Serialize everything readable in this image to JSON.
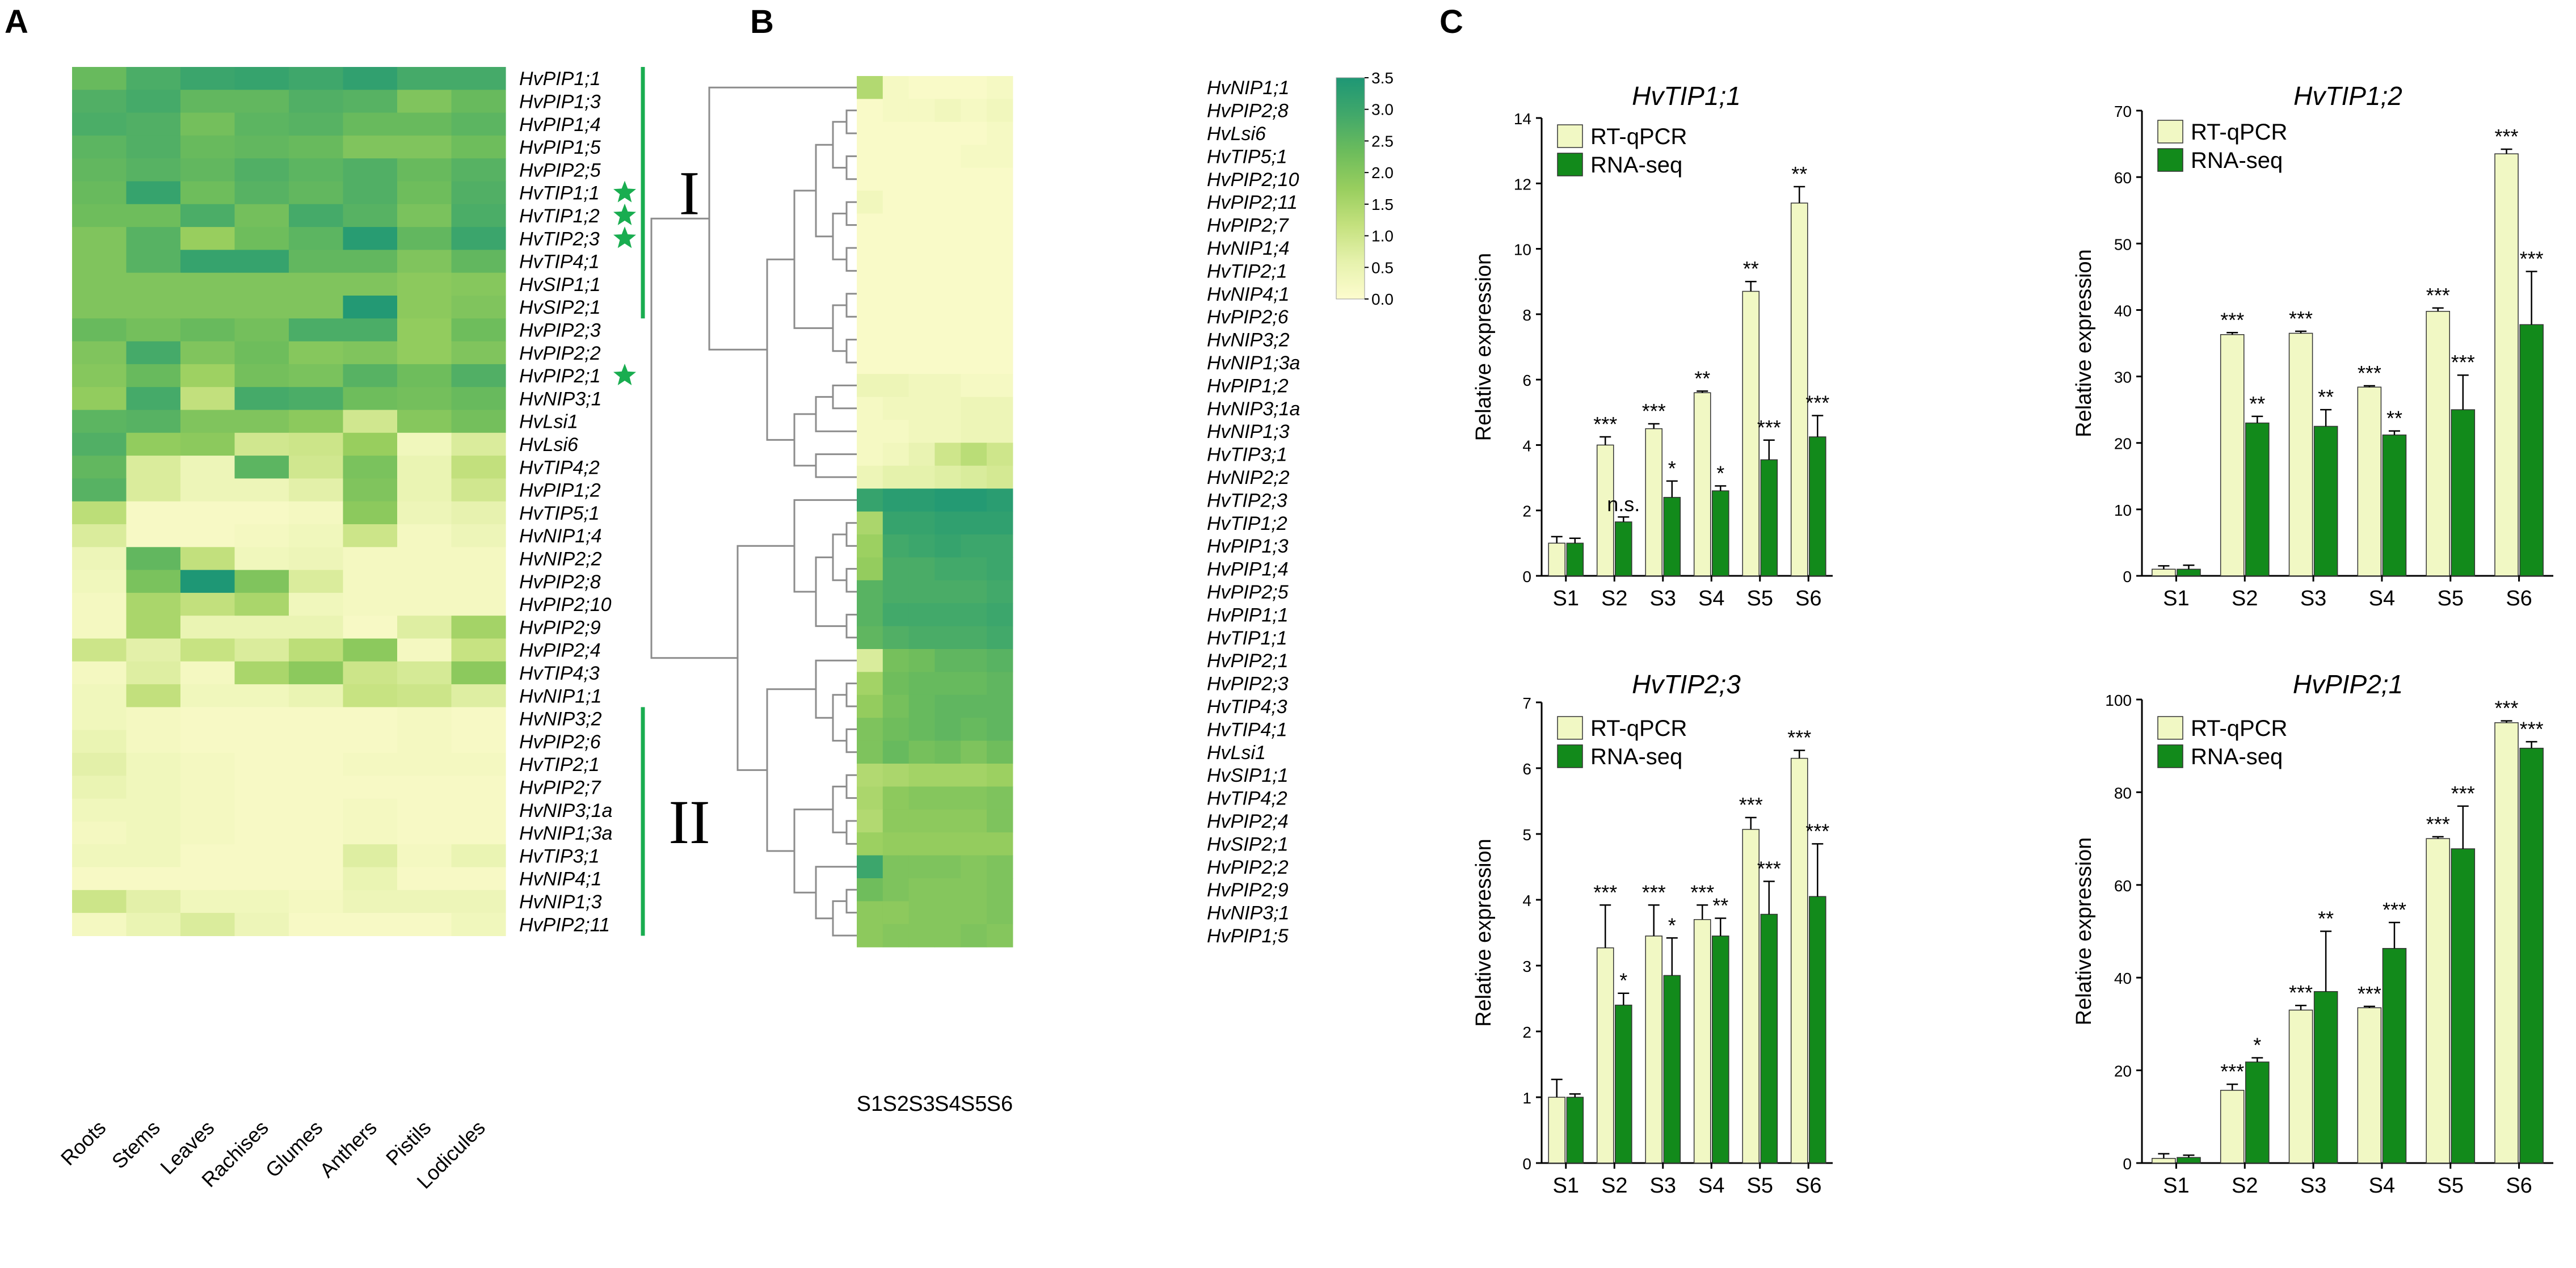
{
  "panel_labels": [
    "A",
    "B",
    "C"
  ],
  "colors": {
    "scale": [
      "#fdfcce",
      "#e6f2ad",
      "#c4e17e",
      "#98ce5e",
      "#6cbc5c",
      "#41a86a",
      "#1e9775"
    ],
    "rtqpcr": "#f1f8c4",
    "rnaseq": "#128a1b",
    "cluster_bar": "#19ad50",
    "star": "#19ad50",
    "dendrogram": "#8c8c8c"
  },
  "chart_data": [
    {
      "type": "heatmap",
      "panel": "A",
      "title": "",
      "xlabel": "",
      "ylabel": "",
      "columns": [
        "Roots",
        "Stems",
        "Leaves",
        "Rachises",
        "Glumes",
        "Anthers",
        "Pistils",
        "Lodicules"
      ],
      "rows": [
        "HvPIP1;1",
        "HvPIP1;3",
        "HvPIP1;4",
        "HvPIP1;5",
        "HvPIP2;5",
        "HvTIP1;1",
        "HvTIP1;2",
        "HvTIP2;3",
        "HvTIP4;1",
        "HvSIP1;1",
        "HvSIP2;1",
        "HvPIP2;3",
        "HvPIP2;2",
        "HvPIP2;1",
        "HvNIP3;1",
        "HvLsi1",
        "HvLsi6",
        "HvTIP4;2",
        "HvPIP1;2",
        "HvTIP5;1",
        "HvNIP1;4",
        "HvNIP2;2",
        "HvPIP2;8",
        "HvPIP2;10",
        "HvPIP2;9",
        "HvPIP2;4",
        "HvTIP4;3",
        "HvNIP1;1",
        "HvNIP3;2",
        "HvPIP2;6",
        "HvTIP2;1",
        "HvPIP2;7",
        "HvNIP3;1a",
        "HvNIP1;3a",
        "HvTIP3;1",
        "HvNIP4;1",
        "HvNIP1;3",
        "HvPIP2;11"
      ],
      "values": [
        [
          3.0,
          3.5,
          3.8,
          3.9,
          3.7,
          4.0,
          3.6,
          3.6
        ],
        [
          3.4,
          3.6,
          3.1,
          3.1,
          3.4,
          3.3,
          2.6,
          3.0
        ],
        [
          3.5,
          3.4,
          2.8,
          3.2,
          3.3,
          3.0,
          3.0,
          3.2
        ],
        [
          3.2,
          3.4,
          3.0,
          3.1,
          3.0,
          2.6,
          2.6,
          2.9
        ],
        [
          3.1,
          3.3,
          3.1,
          3.4,
          3.2,
          3.4,
          3.0,
          3.3
        ],
        [
          3.0,
          3.9,
          2.9,
          3.3,
          3.1,
          3.4,
          2.9,
          3.4
        ],
        [
          2.9,
          2.9,
          3.5,
          2.8,
          3.6,
          3.3,
          2.7,
          3.5
        ],
        [
          2.6,
          3.3,
          2.2,
          2.9,
          3.2,
          4.2,
          3.1,
          3.8
        ],
        [
          2.6,
          3.3,
          3.9,
          3.9,
          3.1,
          3.1,
          2.6,
          3.1
        ],
        [
          2.6,
          2.6,
          2.6,
          2.6,
          2.6,
          2.6,
          2.4,
          2.5
        ],
        [
          2.6,
          2.6,
          2.6,
          2.6,
          2.6,
          4.3,
          2.4,
          2.6
        ],
        [
          3.0,
          2.8,
          3.0,
          2.8,
          3.5,
          3.5,
          2.3,
          2.9
        ],
        [
          2.6,
          3.6,
          2.6,
          2.9,
          2.5,
          2.6,
          2.3,
          2.6
        ],
        [
          2.5,
          3.0,
          2.1,
          2.8,
          2.7,
          3.3,
          2.9,
          3.4
        ],
        [
          2.3,
          3.6,
          1.5,
          3.6,
          3.5,
          2.9,
          2.8,
          3.0
        ],
        [
          3.2,
          3.3,
          2.6,
          2.6,
          2.4,
          1.2,
          2.5,
          2.8
        ],
        [
          3.4,
          2.3,
          2.4,
          1.2,
          1.3,
          2.2,
          0.4,
          1.0
        ],
        [
          3.1,
          1.0,
          0.5,
          3.2,
          1.2,
          2.7,
          0.6,
          1.5
        ],
        [
          3.3,
          1.0,
          0.5,
          0.5,
          0.8,
          2.6,
          0.6,
          1.2
        ],
        [
          1.6,
          0.2,
          0.2,
          0.2,
          0.3,
          2.4,
          0.5,
          0.7
        ],
        [
          1.0,
          0.2,
          0.2,
          0.3,
          0.4,
          1.3,
          0.3,
          0.5
        ],
        [
          0.5,
          3.1,
          1.5,
          0.4,
          0.5,
          0.3,
          0.3,
          0.3
        ],
        [
          0.4,
          2.7,
          4.4,
          2.6,
          1.0,
          0.3,
          0.3,
          0.3
        ],
        [
          0.3,
          1.9,
          1.5,
          1.9,
          0.4,
          0.3,
          0.3,
          0.3
        ],
        [
          0.3,
          1.9,
          0.6,
          0.6,
          0.6,
          0.2,
          0.9,
          2.0
        ],
        [
          1.3,
          0.8,
          1.4,
          1.0,
          1.6,
          2.4,
          0.3,
          1.4
        ],
        [
          0.3,
          0.9,
          0.3,
          1.9,
          2.4,
          1.3,
          1.1,
          2.4
        ],
        [
          0.4,
          1.5,
          0.4,
          0.4,
          0.6,
          1.4,
          1.3,
          0.9
        ],
        [
          0.4,
          0.3,
          0.2,
          0.2,
          0.2,
          0.2,
          0.3,
          0.2
        ],
        [
          0.6,
          0.3,
          0.2,
          0.2,
          0.2,
          0.2,
          0.3,
          0.2
        ],
        [
          0.8,
          0.4,
          0.3,
          0.2,
          0.2,
          0.3,
          0.3,
          0.3
        ],
        [
          0.6,
          0.4,
          0.3,
          0.2,
          0.2,
          0.2,
          0.2,
          0.2
        ],
        [
          0.4,
          0.4,
          0.3,
          0.2,
          0.2,
          0.3,
          0.2,
          0.2
        ],
        [
          0.3,
          0.4,
          0.3,
          0.2,
          0.2,
          0.3,
          0.2,
          0.2
        ],
        [
          0.4,
          0.4,
          0.2,
          0.2,
          0.2,
          0.9,
          0.3,
          0.6
        ],
        [
          0.2,
          0.2,
          0.2,
          0.2,
          0.2,
          0.6,
          0.2,
          0.2
        ],
        [
          1.3,
          0.8,
          0.4,
          0.4,
          0.3,
          0.5,
          0.5,
          0.5
        ],
        [
          0.3,
          0.6,
          1.0,
          0.5,
          0.2,
          0.2,
          0.2,
          0.4
        ]
      ],
      "clusters": [
        {
          "label": "I",
          "from": "HvPIP1;1",
          "to": "HvSIP2;1"
        },
        {
          "label": "II",
          "from": "HvNIP3;2",
          "to": "HvPIP2;11"
        }
      ],
      "starred": [
        "HvTIP1;1",
        "HvTIP1;2",
        "HvTIP2;3",
        "HvPIP2;1"
      ]
    },
    {
      "type": "heatmap",
      "panel": "B",
      "title": "",
      "xlabel": "",
      "ylabel": "",
      "columns": [
        "S1",
        "S2",
        "S3",
        "S4",
        "S5",
        "S6"
      ],
      "rows": [
        "HvNIP1;1",
        "HvPIP2;8",
        "HvLsi6",
        "HvTIP5;1",
        "HvPIP2;10",
        "HvPIP2;11",
        "HvPIP2;7",
        "HvNIP1;4",
        "HvTIP2;1",
        "HvNIP4;1",
        "HvPIP2;6",
        "HvNIP3;2",
        "HvNIP1;3a",
        "HvPIP1;2",
        "HvNIP3;1a",
        "HvNIP1;3",
        "HvTIP3;1",
        "HvNIP2;2",
        "HvTIP2;3",
        "HvTIP1;2",
        "HvPIP1;3",
        "HvPIP1;4",
        "HvPIP2;5",
        "HvPIP1;1",
        "HvTIP1;1",
        "HvPIP2;1",
        "HvPIP2;3",
        "HvTIP4;3",
        "HvTIP4;1",
        "HvLsi1",
        "HvSIP1;1",
        "HvTIP4;2",
        "HvPIP2;4",
        "HvSIP2;1",
        "HvPIP2;2",
        "HvPIP2;9",
        "HvNIP3;1",
        "HvPIP1;5"
      ],
      "values": [
        [
          1.4,
          0.2,
          0.1,
          0.1,
          0.1,
          0.2
        ],
        [
          0.1,
          0.2,
          0.2,
          0.3,
          0.2,
          0.3
        ],
        [
          0.1,
          0.1,
          0.1,
          0.1,
          0.1,
          0.2
        ],
        [
          0.1,
          0.1,
          0.1,
          0.1,
          0.2,
          0.2
        ],
        [
          0.1,
          0.1,
          0.1,
          0.1,
          0.1,
          0.1
        ],
        [
          0.3,
          0.1,
          0.1,
          0.1,
          0.1,
          0.1
        ],
        [
          0.1,
          0.1,
          0.1,
          0.1,
          0.1,
          0.1
        ],
        [
          0.1,
          0.1,
          0.1,
          0.1,
          0.1,
          0.1
        ],
        [
          0.1,
          0.1,
          0.1,
          0.1,
          0.1,
          0.1
        ],
        [
          0.1,
          0.1,
          0.1,
          0.1,
          0.1,
          0.1
        ],
        [
          0.1,
          0.1,
          0.1,
          0.1,
          0.1,
          0.1
        ],
        [
          0.1,
          0.1,
          0.1,
          0.1,
          0.1,
          0.1
        ],
        [
          0.1,
          0.1,
          0.1,
          0.1,
          0.1,
          0.1
        ],
        [
          0.4,
          0.4,
          0.3,
          0.3,
          0.2,
          0.2
        ],
        [
          0.2,
          0.3,
          0.3,
          0.3,
          0.4,
          0.4
        ],
        [
          0.2,
          0.2,
          0.3,
          0.3,
          0.4,
          0.4
        ],
        [
          0.2,
          0.3,
          0.5,
          1.0,
          1.3,
          1.0
        ],
        [
          0.4,
          0.6,
          0.6,
          0.7,
          0.8,
          0.9
        ],
        [
          3.1,
          3.3,
          3.3,
          3.4,
          3.4,
          3.3
        ],
        [
          1.5,
          3.1,
          3.1,
          3.2,
          3.2,
          3.2
        ],
        [
          1.7,
          2.9,
          3.0,
          3.1,
          3.0,
          3.0
        ],
        [
          1.8,
          2.8,
          2.8,
          2.9,
          2.9,
          3.0
        ],
        [
          2.6,
          2.8,
          2.8,
          2.8,
          2.8,
          2.9
        ],
        [
          2.6,
          2.9,
          2.9,
          2.9,
          2.9,
          3.0
        ],
        [
          2.5,
          2.7,
          2.8,
          2.8,
          2.8,
          2.9
        ],
        [
          0.8,
          2.2,
          2.3,
          2.5,
          2.5,
          2.6
        ],
        [
          1.6,
          2.3,
          2.4,
          2.4,
          2.4,
          2.5
        ],
        [
          1.8,
          2.2,
          2.4,
          2.5,
          2.5,
          2.5
        ],
        [
          2.1,
          2.3,
          2.4,
          2.5,
          2.4,
          2.5
        ],
        [
          2.1,
          2.4,
          2.2,
          2.3,
          2.1,
          2.3
        ],
        [
          1.4,
          1.5,
          1.6,
          1.6,
          1.6,
          1.7
        ],
        [
          1.5,
          1.9,
          2.0,
          2.0,
          2.0,
          2.1
        ],
        [
          1.4,
          1.9,
          1.9,
          1.9,
          1.9,
          2.1
        ],
        [
          1.7,
          1.8,
          1.8,
          1.8,
          1.8,
          1.8
        ],
        [
          3.0,
          2.1,
          2.1,
          2.1,
          2.0,
          2.1
        ],
        [
          2.3,
          2.1,
          2.0,
          2.0,
          2.0,
          2.1
        ],
        [
          1.9,
          1.9,
          2.0,
          2.0,
          2.0,
          2.1
        ],
        [
          1.9,
          2.0,
          2.0,
          2.0,
          2.1,
          2.0
        ]
      ],
      "colorbar": {
        "min": 0.0,
        "max": 3.5,
        "ticks": [
          "3.5",
          "3.0",
          "2.5",
          "2.0",
          "1.5",
          "1.0",
          "0.5",
          "0.0"
        ]
      }
    },
    {
      "type": "bar",
      "panel": "C",
      "title": "HvTIP1;1",
      "xlabel": "",
      "ylabel": "Relative expression",
      "categories": [
        "S1",
        "S2",
        "S3",
        "S4",
        "S5",
        "S6"
      ],
      "ylim": [
        0,
        14
      ],
      "yticks": [
        "0",
        "2",
        "4",
        "6",
        "8",
        "10",
        "12",
        "14"
      ],
      "series": [
        {
          "name": "RT-qPCR",
          "values": [
            1.0,
            4.0,
            4.5,
            5.6,
            8.7,
            11.4
          ],
          "errors": [
            0.2,
            0.25,
            0.15,
            0.05,
            0.3,
            0.5
          ],
          "sig": [
            "",
            "***",
            "***",
            "**",
            "**",
            "**"
          ]
        },
        {
          "name": "RNA-seq",
          "values": [
            1.0,
            1.65,
            2.4,
            2.6,
            3.55,
            4.25
          ],
          "errors": [
            0.15,
            0.15,
            0.5,
            0.15,
            0.6,
            0.65
          ],
          "sig": [
            "",
            "n.s.",
            "*",
            "*",
            "***",
            "***"
          ]
        }
      ]
    },
    {
      "type": "bar",
      "panel": "C",
      "title": "HvTIP1;2",
      "xlabel": "",
      "ylabel": "Relative expression",
      "categories": [
        "S1",
        "S2",
        "S3",
        "S4",
        "S5",
        "S6"
      ],
      "ylim": [
        0,
        70
      ],
      "yticks": [
        "0",
        "10",
        "20",
        "30",
        "40",
        "50",
        "60",
        "70"
      ],
      "series": [
        {
          "name": "RT-qPCR",
          "values": [
            1.0,
            36.3,
            36.5,
            28.4,
            39.8,
            63.5
          ],
          "errors": [
            0.5,
            0.3,
            0.3,
            0.2,
            0.5,
            0.7
          ],
          "sig": [
            "",
            "***",
            "***",
            "***",
            "***",
            "***"
          ]
        },
        {
          "name": "RNA-seq",
          "values": [
            1.0,
            23.0,
            22.5,
            21.2,
            25.0,
            37.8
          ],
          "errors": [
            0.6,
            1.0,
            2.5,
            0.6,
            5.2,
            8.0
          ],
          "sig": [
            "",
            "**",
            "**",
            "**",
            "***",
            "***"
          ]
        }
      ]
    },
    {
      "type": "bar",
      "panel": "C",
      "title": "HvTIP2;3",
      "xlabel": "",
      "ylabel": "Relative expression",
      "categories": [
        "S1",
        "S2",
        "S3",
        "S4",
        "S5",
        "S6"
      ],
      "ylim": [
        0,
        7
      ],
      "yticks": [
        "0",
        "1",
        "2",
        "3",
        "4",
        "5",
        "6",
        "7"
      ],
      "series": [
        {
          "name": "RT-qPCR",
          "values": [
            1.0,
            3.27,
            3.45,
            3.7,
            5.07,
            6.15
          ],
          "errors": [
            0.27,
            0.65,
            0.47,
            0.22,
            0.18,
            0.12
          ],
          "sig": [
            "",
            "***",
            "***",
            "***",
            "***",
            "***"
          ]
        },
        {
          "name": "RNA-seq",
          "values": [
            1.0,
            2.4,
            2.85,
            3.45,
            3.78,
            4.05
          ],
          "errors": [
            0.05,
            0.18,
            0.57,
            0.27,
            0.5,
            0.8
          ],
          "sig": [
            "",
            "*",
            "*",
            "**",
            "***",
            "***"
          ]
        }
      ]
    },
    {
      "type": "bar",
      "panel": "C",
      "title": "HvPIP2;1",
      "xlabel": "",
      "ylabel": "Relative expression",
      "categories": [
        "S1",
        "S2",
        "S3",
        "S4",
        "S5",
        "S6"
      ],
      "ylim": [
        0,
        100
      ],
      "yticks": [
        "0",
        "20",
        "40",
        "60",
        "80",
        "100"
      ],
      "series": [
        {
          "name": "RT-qPCR",
          "values": [
            1.0,
            15.7,
            33.0,
            33.5,
            70.0,
            95.0
          ],
          "errors": [
            1.0,
            1.3,
            1.0,
            0.3,
            0.4,
            0.4
          ],
          "sig": [
            "",
            "***",
            "***",
            "***",
            "***",
            "***"
          ]
        },
        {
          "name": "RNA-seq",
          "values": [
            1.2,
            21.8,
            37.0,
            46.3,
            67.8,
            89.5
          ],
          "errors": [
            0.5,
            0.9,
            13.0,
            5.6,
            9.2,
            1.4
          ],
          "sig": [
            "",
            "*",
            "**",
            "***",
            "***",
            "***"
          ]
        }
      ]
    }
  ]
}
